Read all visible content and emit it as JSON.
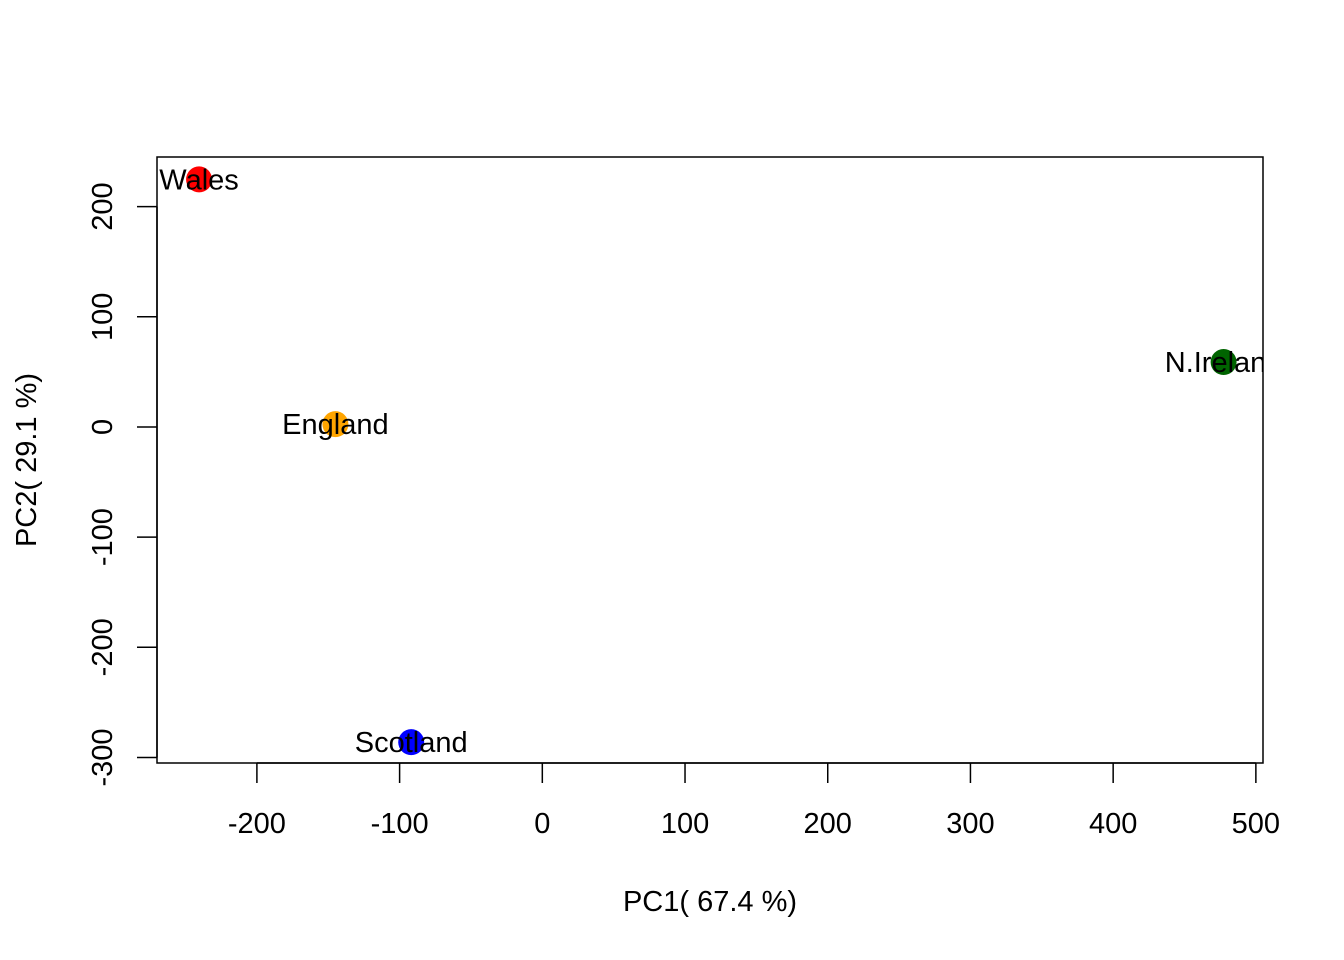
{
  "chart_data": {
    "type": "scatter",
    "title": "",
    "xlabel": "PC1( 67.4 %)",
    "ylabel": "PC2( 29.1 %)",
    "xlim": [
      -270,
      505
    ],
    "ylim": [
      -305,
      245
    ],
    "xticks": [
      -200,
      -100,
      0,
      100,
      200,
      300,
      400,
      500
    ],
    "xtick_labels": [
      "-200",
      "-100",
      "0",
      "100",
      "200",
      "300",
      "400",
      "500"
    ],
    "yticks": [
      -300,
      -200,
      -100,
      0,
      100,
      200
    ],
    "ytick_labels": [
      "-300",
      "-200",
      "-100",
      "0",
      "100",
      "200"
    ],
    "grid": false,
    "legend": "none",
    "points": [
      {
        "label": "England",
        "x": -144.99,
        "y": 2.53,
        "color": "#FFA500"
      },
      {
        "label": "Wales",
        "x": -240.53,
        "y": 224.65,
        "color": "#FF0000"
      },
      {
        "label": "Scotland",
        "x": -91.87,
        "y": -286.08,
        "color": "#0000FF"
      },
      {
        "label": "N.Ireland",
        "x": 477.39,
        "y": 58.9,
        "color": "#006400"
      }
    ]
  }
}
